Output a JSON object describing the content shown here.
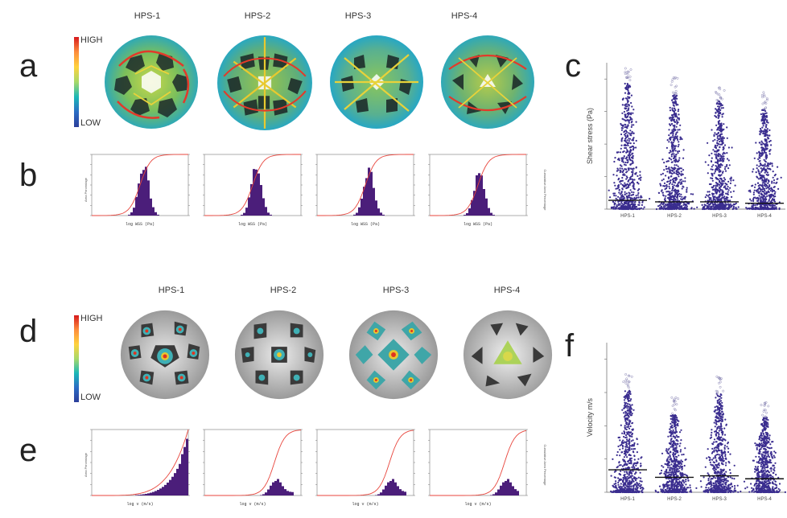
{
  "letters": {
    "a": "a",
    "b": "b",
    "c": "c",
    "d": "d",
    "e": "e",
    "f": "f"
  },
  "scaffolds": [
    "HPS-1",
    "HPS-2",
    "HPS-3",
    "HPS-4"
  ],
  "legend": {
    "high": "HIGH",
    "low": "LOW"
  },
  "hist_top": {
    "ylabel": "Area Percentage",
    "xlabel": "log WSS (Pa)",
    "y2label": "Cumulative Area Percentage"
  },
  "hist_bottom": {
    "ylabel": "Area Percentage",
    "xlabel": "log v (m/s)",
    "y2label": "Cumulative Area Percentage"
  },
  "shear": {
    "ylabel": "Shear stress (Pa)"
  },
  "velocity": {
    "ylabel": "Velocity m/s"
  },
  "colors": {
    "high": "#d7191c",
    "low": "#2c3e9a",
    "dots": "#3a2d8f",
    "hist": "#4b1e7a",
    "cum": "#e8453c"
  }
}
